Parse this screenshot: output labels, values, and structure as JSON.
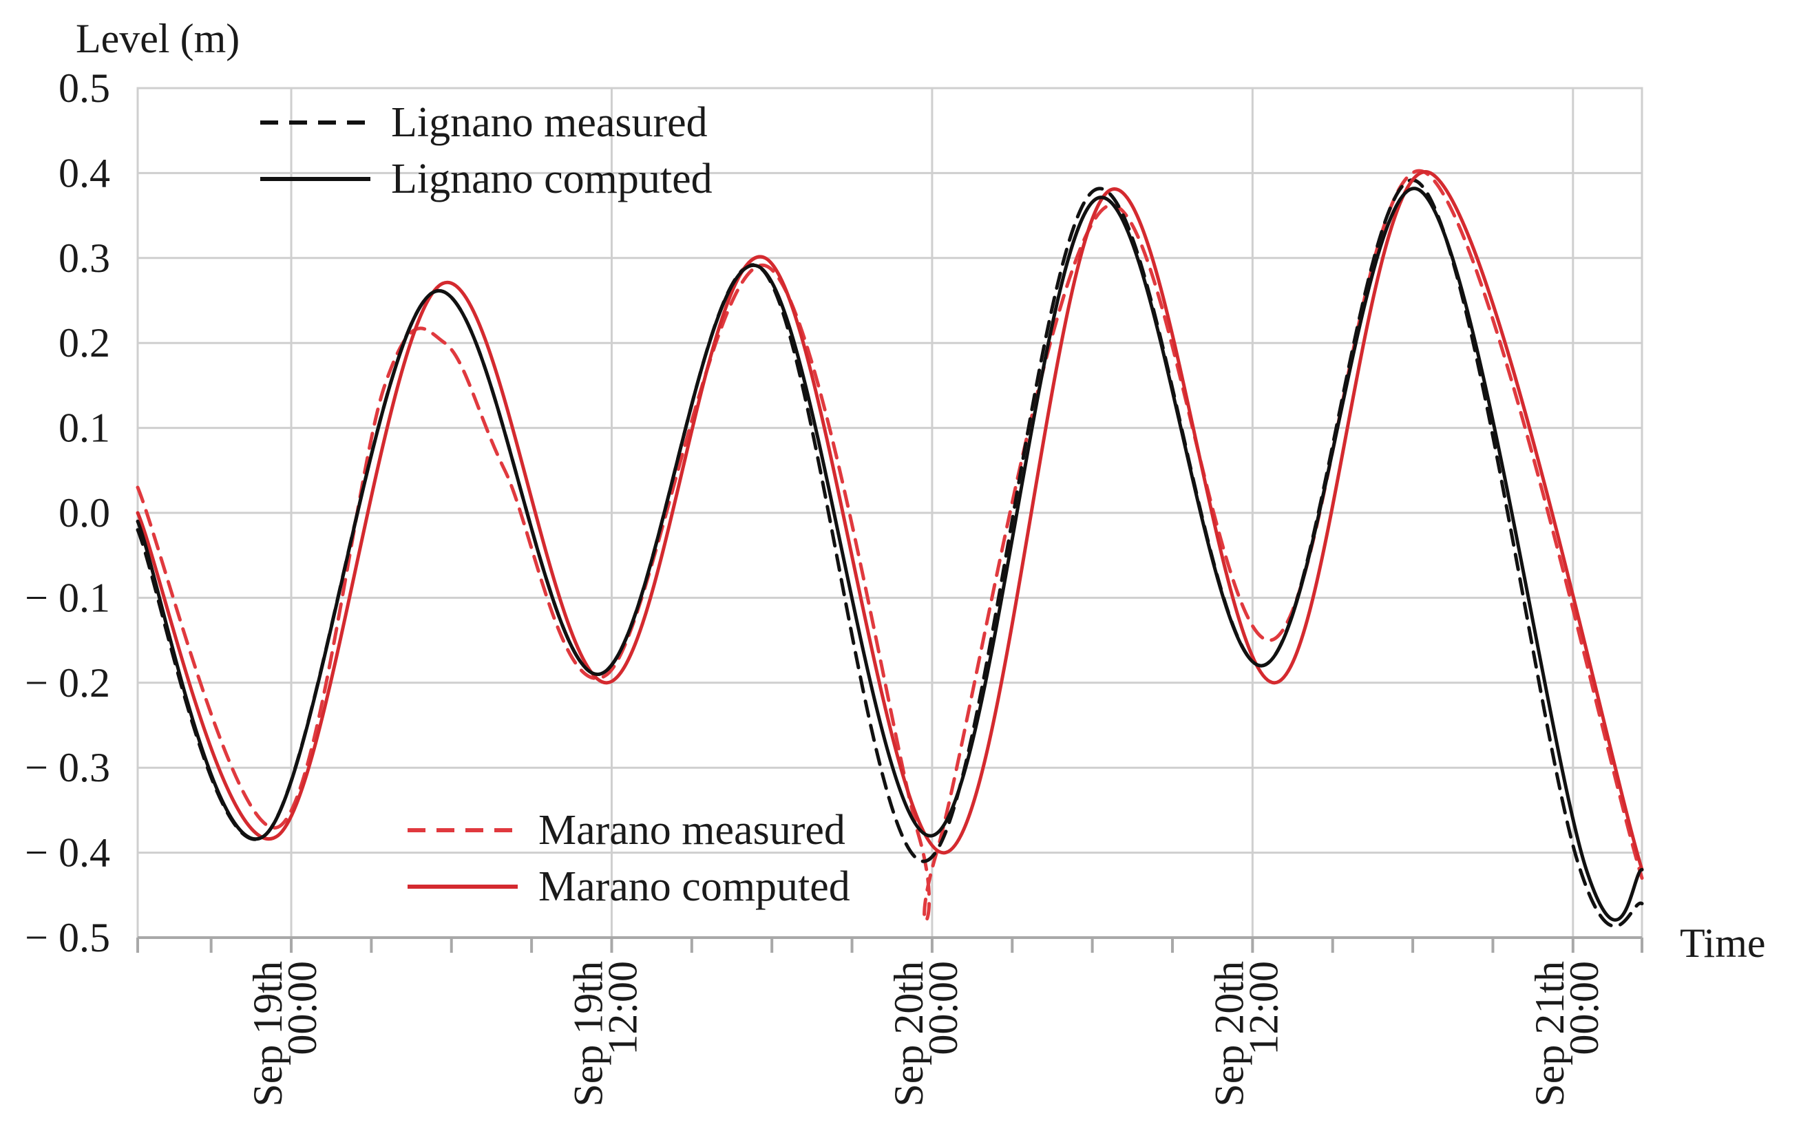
{
  "chart_data": {
    "type": "line",
    "ylabel": "Level (m)",
    "xlabel": "Time",
    "ylim": [
      -0.5,
      0.5
    ],
    "xlim": [
      "Sep 18th 18:15",
      "Sep 21st 02:35"
    ],
    "y_ticks": [
      "0.5",
      "0.4",
      "0.3",
      "0.2",
      "0.1",
      "0.0",
      "− 0.1",
      "− 0.2",
      "− 0.3",
      "− 0.4",
      "− 0.5"
    ],
    "y_tick_values": [
      0.5,
      0.4,
      0.3,
      0.2,
      0.1,
      0.0,
      -0.1,
      -0.2,
      -0.3,
      -0.4,
      -0.5
    ],
    "x_ticks": [
      {
        "date": "Sep 19th",
        "time": "00:00"
      },
      {
        "date": "Sep 19th",
        "time": "12:00"
      },
      {
        "date": "Sep 20th",
        "time": "00:00"
      },
      {
        "date": "Sep 20th",
        "time": "12:00"
      },
      {
        "date": "Sep 21th",
        "time": "00:00"
      }
    ],
    "x_tick_values": [
      "Sep 19th 00:00",
      "Sep 19th 12:00",
      "Sep 20th 00:00",
      "Sep 20th 12:00",
      "Sep 21st 00:00"
    ],
    "minor_tick_hours": 3,
    "grid": true,
    "legend": [
      {
        "position": "top-left",
        "entries": [
          "Lignano measured",
          "Lignano computed"
        ]
      },
      {
        "position": "bottom-center",
        "entries": [
          "Marano measured",
          "Marano computed"
        ]
      }
    ],
    "series": [
      {
        "name": "Lignano measured",
        "color": "#111111",
        "dash": "dashed",
        "x": [
          "Sep 18th 18:15",
          "Sep 18th 23:00",
          "Sep 19th 05:20",
          "Sep 19th 11:30",
          "Sep 19th 17:30",
          "Sep 19th 23:45",
          "Sep 20th 06:05",
          "Sep 20th 12:20",
          "Sep 20th 18:10",
          "Sep 21st 00:10",
          "Sep 21st 02:35"
        ],
        "y": [
          -0.02,
          -0.38,
          0.26,
          -0.19,
          0.29,
          -0.41,
          0.38,
          -0.18,
          0.39,
          -0.41,
          -0.46
        ]
      },
      {
        "name": "Lignano computed",
        "color": "#111111",
        "dash": "solid",
        "x": [
          "Sep 18th 18:15",
          "Sep 18th 23:00",
          "Sep 19th 05:20",
          "Sep 19th 11:30",
          "Sep 19th 17:30",
          "Sep 20th 00:00",
          "Sep 20th 06:10",
          "Sep 20th 12:20",
          "Sep 20th 18:15",
          "Sep 21st 00:30",
          "Sep 21st 02:35"
        ],
        "y": [
          -0.01,
          -0.38,
          0.26,
          -0.19,
          0.29,
          -0.38,
          0.37,
          -0.18,
          0.38,
          -0.42,
          -0.42
        ]
      },
      {
        "name": "Marano measured",
        "color": "#e0393e",
        "dash": "dashed",
        "x": [
          "Sep 18th 18:15",
          "Sep 18th 23:30",
          "Sep 19th 03:30",
          "Sep 19th 05:45",
          "Sep 19th 08:00",
          "Sep 19th 11:50",
          "Sep 19th 17:50",
          "Sep 19th 23:30",
          "Sep 20th 00:10",
          "Sep 20th 06:30",
          "Sep 20th 12:40",
          "Sep 20th 18:30",
          "Sep 21st 02:35"
        ],
        "y": [
          0.03,
          -0.37,
          0.15,
          0.2,
          0.05,
          -0.19,
          0.29,
          -0.38,
          -0.4,
          0.36,
          -0.15,
          0.4,
          -0.43
        ]
      },
      {
        "name": "Marano computed",
        "color": "#d42a2f",
        "dash": "solid",
        "x": [
          "Sep 18th 18:15",
          "Sep 18th 23:30",
          "Sep 19th 05:40",
          "Sep 19th 11:50",
          "Sep 19th 17:45",
          "Sep 20th 00:30",
          "Sep 20th 06:40",
          "Sep 20th 12:50",
          "Sep 20th 18:40",
          "Sep 21st 02:35"
        ],
        "y": [
          0.0,
          -0.38,
          0.27,
          -0.2,
          0.3,
          -0.4,
          0.38,
          -0.2,
          0.4,
          -0.42
        ]
      }
    ]
  }
}
